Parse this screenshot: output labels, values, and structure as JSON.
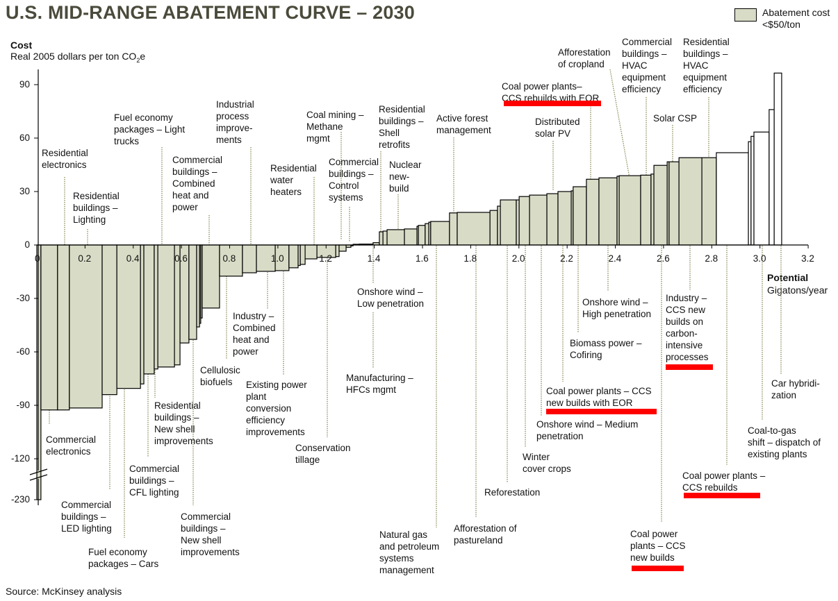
{
  "chart_data": {
    "type": "bar",
    "variant": "variable-width cost curve",
    "title": "U.S. MID-RANGE ABATEMENT CURVE – 2030",
    "ylabel": "Cost",
    "ylabel_sub_pre": "Real 2005 dollars per ton CO",
    "ylabel_sub_sub": "2",
    "ylabel_sub_post": "e",
    "xlabel": "Potential",
    "xlabel_sub": "Gigatons/year",
    "xlim": [
      0,
      3.2
    ],
    "ylim": [
      -230,
      100
    ],
    "y_axis_break": [
      -120,
      -230
    ],
    "grid": false,
    "x_ticks": [
      "0",
      "0.2",
      "0.4",
      "0.6",
      "0.8",
      "1.0",
      "1.2",
      "1.4",
      "1.6",
      "1.8",
      "2.0",
      "2.2",
      "2.4",
      "2.6",
      "2.8",
      "3.0",
      "3.2"
    ],
    "y_ticks": [
      "90",
      "60",
      "30",
      "0",
      "-30",
      "-60",
      "-90",
      "-120",
      "-230"
    ],
    "legend": {
      "label": "Abatement cost <$50/ton",
      "position": "top-right",
      "color": "#d8dcc6"
    },
    "colors": {
      "below_50": "#d8dcc6",
      "above_50": "#ffffff",
      "highlight": "#ff0000"
    },
    "bars": [
      {
        "x0": 0.0,
        "x1": 0.017,
        "cost": -230
      },
      {
        "x0": 0.017,
        "x1": 0.086,
        "cost": -92.6
      },
      {
        "x0": 0.086,
        "x1": 0.135,
        "cost": -92.6
      },
      {
        "x0": 0.135,
        "x1": 0.271,
        "cost": -91.5
      },
      {
        "x0": 0.271,
        "x1": 0.332,
        "cost": -84
      },
      {
        "x0": 0.332,
        "x1": 0.43,
        "cost": -80.5
      },
      {
        "x0": 0.43,
        "x1": 0.444,
        "cost": -78
      },
      {
        "x0": 0.444,
        "x1": 0.487,
        "cost": -72.4
      },
      {
        "x0": 0.487,
        "x1": 0.502,
        "cost": -69.6
      },
      {
        "x0": 0.502,
        "x1": 0.571,
        "cost": -68.5
      },
      {
        "x0": 0.571,
        "x1": 0.594,
        "cost": -67.3
      },
      {
        "x0": 0.594,
        "x1": 0.631,
        "cost": -55
      },
      {
        "x0": 0.631,
        "x1": 0.663,
        "cost": -53
      },
      {
        "x0": 0.663,
        "x1": 0.675,
        "cost": -46
      },
      {
        "x0": 0.675,
        "x1": 0.68,
        "cost": -44
      },
      {
        "x0": 0.68,
        "x1": 0.686,
        "cost": -41
      },
      {
        "x0": 0.686,
        "x1": 0.758,
        "cost": -35.4
      },
      {
        "x0": 0.758,
        "x1": 0.853,
        "cost": -17.5
      },
      {
        "x0": 0.853,
        "x1": 0.911,
        "cost": -15.6
      },
      {
        "x0": 0.911,
        "x1": 0.989,
        "cost": -14.8
      },
      {
        "x0": 0.989,
        "x1": 1.046,
        "cost": -14.4
      },
      {
        "x0": 1.046,
        "x1": 1.084,
        "cost": -12.8
      },
      {
        "x0": 1.084,
        "x1": 1.093,
        "cost": -11.5
      },
      {
        "x0": 1.093,
        "x1": 1.113,
        "cost": -10.9
      },
      {
        "x0": 1.113,
        "x1": 1.162,
        "cost": -7.8
      },
      {
        "x0": 1.162,
        "x1": 1.24,
        "cost": -7
      },
      {
        "x0": 1.24,
        "x1": 1.254,
        "cost": -6.5
      },
      {
        "x0": 1.254,
        "x1": 1.283,
        "cost": -3.5
      },
      {
        "x0": 1.283,
        "x1": 1.303,
        "cost": -1.3
      },
      {
        "x0": 1.303,
        "x1": 1.312,
        "cost": -0.5
      },
      {
        "x0": 1.312,
        "x1": 1.338,
        "cost": 0.4
      },
      {
        "x0": 1.338,
        "x1": 1.395,
        "cost": 0.5
      },
      {
        "x0": 1.395,
        "x1": 1.421,
        "cost": 1.3
      },
      {
        "x0": 1.421,
        "x1": 1.436,
        "cost": 7.4
      },
      {
        "x0": 1.436,
        "x1": 1.453,
        "cost": 7.8
      },
      {
        "x0": 1.453,
        "x1": 1.525,
        "cost": 8.6
      },
      {
        "x0": 1.525,
        "x1": 1.577,
        "cost": 9
      },
      {
        "x0": 1.577,
        "x1": 1.583,
        "cost": 10.5
      },
      {
        "x0": 1.583,
        "x1": 1.611,
        "cost": 11
      },
      {
        "x0": 1.611,
        "x1": 1.626,
        "cost": 12
      },
      {
        "x0": 1.626,
        "x1": 1.634,
        "cost": 12.8
      },
      {
        "x0": 1.634,
        "x1": 1.712,
        "cost": 13.2
      },
      {
        "x0": 1.712,
        "x1": 1.744,
        "cost": 18
      },
      {
        "x0": 1.744,
        "x1": 1.88,
        "cost": 18.3
      },
      {
        "x0": 1.88,
        "x1": 1.911,
        "cost": 19.4
      },
      {
        "x0": 1.911,
        "x1": 1.923,
        "cost": 21.8
      },
      {
        "x0": 1.923,
        "x1": 1.989,
        "cost": 25.3
      },
      {
        "x0": 1.989,
        "x1": 2.001,
        "cost": 25.3
      },
      {
        "x0": 2.001,
        "x1": 2.044,
        "cost": 27.2
      },
      {
        "x0": 2.044,
        "x1": 2.116,
        "cost": 28
      },
      {
        "x0": 2.116,
        "x1": 2.162,
        "cost": 28.8
      },
      {
        "x0": 2.162,
        "x1": 2.217,
        "cost": 30
      },
      {
        "x0": 2.217,
        "x1": 2.225,
        "cost": 30.4
      },
      {
        "x0": 2.225,
        "x1": 2.28,
        "cost": 32.7
      },
      {
        "x0": 2.28,
        "x1": 2.332,
        "cost": 36.9
      },
      {
        "x0": 2.332,
        "x1": 2.407,
        "cost": 37.7
      },
      {
        "x0": 2.407,
        "x1": 2.416,
        "cost": 38.6
      },
      {
        "x0": 2.416,
        "x1": 2.505,
        "cost": 38.9
      },
      {
        "x0": 2.505,
        "x1": 2.548,
        "cost": 39.2
      },
      {
        "x0": 2.548,
        "x1": 2.56,
        "cost": 39.8
      },
      {
        "x0": 2.56,
        "x1": 2.615,
        "cost": 44.7
      },
      {
        "x0": 2.615,
        "x1": 2.623,
        "cost": 46.7
      },
      {
        "x0": 2.623,
        "x1": 2.664,
        "cost": 46.7
      },
      {
        "x0": 2.664,
        "x1": 2.759,
        "cost": 49
      },
      {
        "x0": 2.759,
        "x1": 2.819,
        "cost": 49
      },
      {
        "x0": 2.819,
        "x1": 2.952,
        "cost": 51.8
      },
      {
        "x0": 2.952,
        "x1": 2.963,
        "cost": 58
      },
      {
        "x0": 2.963,
        "x1": 2.975,
        "cost": 61
      },
      {
        "x0": 2.975,
        "x1": 3.038,
        "cost": 63.4
      },
      {
        "x0": 3.038,
        "x1": 3.059,
        "cost": 76
      },
      {
        "x0": 3.059,
        "x1": 3.09,
        "cost": 96.5
      }
    ],
    "annotations": [
      {
        "text": "Residential\nelectronics",
        "highlighted": false
      },
      {
        "text": "Residential\nbuildings –\nLighting",
        "highlighted": false
      },
      {
        "text": "Fuel economy\npackages – Light\ntrucks",
        "highlighted": false
      },
      {
        "text": "Commercial\nbuildings –\nCombined\nheat and\npower",
        "highlighted": false
      },
      {
        "text": "Industrial\nprocess\nimprove-\nments",
        "highlighted": false
      },
      {
        "text": "Residential\nwater\nheaters",
        "highlighted": false
      },
      {
        "text": "Coal mining –\nMethane\nmgmt",
        "highlighted": false
      },
      {
        "text": "Commercial\nbuildings –\nControl\nsystems",
        "highlighted": false
      },
      {
        "text": "Residential\nbuildings –\nShell\nretrofits",
        "highlighted": false
      },
      {
        "text": "Nuclear\nnew-\nbuild",
        "highlighted": false
      },
      {
        "text": "Active forest\nmanagement",
        "highlighted": false
      },
      {
        "text": "Afforestation\nof cropland",
        "highlighted": false
      },
      {
        "text": "Coal power plants–\nCCS rebuilds with EOR",
        "highlighted": true
      },
      {
        "text": "Distributed\nsolar PV",
        "highlighted": false
      },
      {
        "text": "Commercial\nbuildings –\nHVAC\nequipment\nefficiency",
        "highlighted": false
      },
      {
        "text": "Solar  CSP",
        "highlighted": false
      },
      {
        "text": "Residential\nbuildings –\nHVAC\nequipment\nefficiency",
        "highlighted": false
      },
      {
        "text": "Commercial\nelectronics",
        "highlighted": false
      },
      {
        "text": "Commercial\nbuildings –\nLED lighting",
        "highlighted": false
      },
      {
        "text": "Fuel economy\npackages – Cars",
        "highlighted": false
      },
      {
        "text": "Commercial\nbuildings –\nCFL lighting",
        "highlighted": false
      },
      {
        "text": "Residential\nbuildings –\nNew shell\nimprovements",
        "highlighted": false
      },
      {
        "text": "Commercial\nbuildings –\nNew shell\nimprovements",
        "highlighted": false
      },
      {
        "text": "Cellulosic\nbiofuels",
        "highlighted": false
      },
      {
        "text": "Industry –\nCombined\nheat and\npower",
        "highlighted": false
      },
      {
        "text": "Existing power\nplant\nconversion\nefficiency\nimprovements",
        "highlighted": false
      },
      {
        "text": "Conservation\ntillage",
        "highlighted": false
      },
      {
        "text": "Onshore wind –\nLow penetration",
        "highlighted": false
      },
      {
        "text": "Manufacturing –\nHFCs mgmt",
        "highlighted": false
      },
      {
        "text": "Natural gas\nand petroleum\nsystems\nmanagement",
        "highlighted": false
      },
      {
        "text": "Afforestation of\npastureland",
        "highlighted": false
      },
      {
        "text": "Reforestation",
        "highlighted": false
      },
      {
        "text": "Winter\ncover crops",
        "highlighted": false
      },
      {
        "text": "Onshore wind – Medium\npenetration",
        "highlighted": false
      },
      {
        "text": "Coal power plants – CCS\nnew builds with EOR",
        "highlighted": true
      },
      {
        "text": "Biomass  power –\nCofiring",
        "highlighted": false
      },
      {
        "text": "Onshore wind –\nHigh penetration",
        "highlighted": false
      },
      {
        "text": "Coal power\nplants – CCS\nnew builds",
        "highlighted": true
      },
      {
        "text": "Industry –\nCCS new\nbuilds on\ncarbon-\nintensive\nprocesses",
        "highlighted": true
      },
      {
        "text": "Coal power plants –\nCCS rebuilds",
        "highlighted": true
      },
      {
        "text": "Coal-to-gas\nshift – dispatch of\nexisting plants",
        "highlighted": false
      },
      {
        "text": "Car hybridi-\nzation",
        "highlighted": false
      }
    ]
  },
  "source": "Source: McKinsey analysis"
}
